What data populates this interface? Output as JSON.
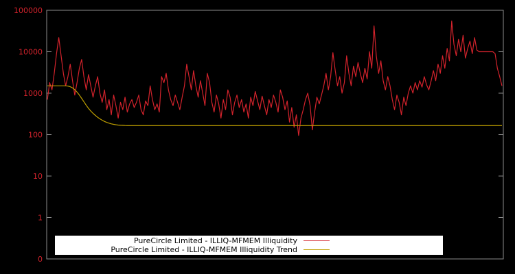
{
  "chart_data": {
    "type": "line",
    "title": "",
    "background_color": "#000000",
    "frame_color": "#8c8c8c",
    "y_axis": {
      "scale": "log",
      "ticks": [
        "100000",
        "10000",
        "1000",
        "100",
        "10",
        "1",
        "0"
      ],
      "label_color": "#d4232c",
      "ylim_log_top": 100000,
      "ylim_log_bottom": 1
    },
    "x_axis": {
      "ticks": []
    },
    "legend": {
      "position": "bottom-center",
      "background": "#ffffff",
      "text_color": "#000000"
    },
    "series": [
      {
        "name": "PureCircle Limited - ILLIQ-MFMEM Illiquidity",
        "color": "#d4232c",
        "values": [
          700,
          1800,
          1200,
          3000,
          9000,
          22000,
          8000,
          3000,
          1500,
          2500,
          5000,
          2000,
          900,
          1800,
          4000,
          6500,
          2500,
          1200,
          2800,
          1500,
          800,
          1500,
          2500,
          1000,
          600,
          1200,
          400,
          700,
          300,
          900,
          500,
          250,
          600,
          400,
          800,
          350,
          550,
          700,
          450,
          600,
          900,
          400,
          300,
          650,
          500,
          1500,
          700,
          400,
          550,
          350,
          2500,
          1800,
          3000,
          1200,
          700,
          500,
          900,
          600,
          400,
          800,
          1500,
          5000,
          2500,
          1200,
          3500,
          1500,
          800,
          2000,
          1000,
          500,
          3000,
          1800,
          600,
          350,
          900,
          550,
          250,
          700,
          400,
          1200,
          800,
          300,
          600,
          900,
          450,
          700,
          350,
          550,
          250,
          800,
          500,
          1100,
          650,
          400,
          850,
          500,
          300,
          700,
          450,
          900,
          600,
          350,
          1200,
          800,
          400,
          650,
          200,
          450,
          150,
          300,
          95,
          250,
          400,
          700,
          1000,
          500,
          130,
          350,
          800,
          550,
          900,
          1500,
          3000,
          1200,
          2500,
          9500,
          3500,
          1500,
          2500,
          1000,
          1800,
          8000,
          3000,
          1500,
          4500,
          2500,
          5500,
          3000,
          1800,
          4000,
          2200,
          10000,
          4000,
          42000,
          8000,
          3000,
          6000,
          2000,
          1200,
          2500,
          1500,
          700,
          400,
          900,
          600,
          300,
          800,
          500,
          1000,
          1500,
          1000,
          1800,
          1200,
          2000,
          1400,
          2500,
          1600,
          1200,
          2000,
          3500,
          2000,
          5000,
          3000,
          8000,
          4000,
          12000,
          6000,
          55000,
          15000,
          8000,
          20000,
          10000,
          25000,
          7000,
          12000,
          18000,
          9000,
          22000,
          11000,
          10000,
          10000,
          10000,
          10000,
          10000,
          10000,
          10000,
          9000,
          4000,
          2500,
          1500
        ]
      },
      {
        "name": "PureCircle Limited - ILLIQ-MFMEM Illiquidity Trend",
        "color": "#c0a000",
        "values": [
          1500,
          1500,
          1500,
          1500,
          1500,
          1500,
          1500,
          1500,
          1500,
          1480,
          1430,
          1340,
          1210,
          1060,
          900,
          750,
          620,
          510,
          430,
          370,
          325,
          290,
          262,
          240,
          222,
          208,
          197,
          189,
          182,
          177,
          173,
          170,
          168,
          167,
          166,
          165,
          165,
          165,
          165,
          165,
          165,
          165,
          165,
          165,
          165,
          165,
          165,
          165,
          165,
          165,
          165,
          165,
          165,
          165,
          165,
          165,
          165,
          165,
          165,
          165,
          165,
          165,
          165,
          165,
          165,
          165,
          165,
          165,
          165,
          165,
          165,
          165,
          165,
          165,
          165,
          165,
          165,
          165,
          165,
          165,
          165,
          165,
          165,
          165,
          165,
          165,
          165,
          165,
          165,
          165,
          165,
          165,
          165,
          165,
          165,
          165,
          165,
          165,
          165,
          165,
          165,
          165,
          165,
          165,
          165,
          165,
          165,
          165,
          165,
          165,
          165,
          165,
          165,
          165,
          165,
          165,
          165,
          165,
          165,
          165,
          165,
          165,
          165,
          165,
          165,
          165,
          165,
          165,
          165,
          165,
          165,
          165,
          165,
          165,
          165,
          165,
          165,
          165,
          165,
          165,
          165,
          165,
          165,
          165,
          165,
          165,
          165,
          165,
          165,
          165,
          165,
          165,
          165,
          165,
          165,
          165,
          165,
          165,
          165,
          165,
          165,
          165,
          165,
          165,
          165,
          165,
          165,
          165,
          165,
          165,
          165,
          165,
          165,
          165,
          165,
          165,
          165,
          165,
          165,
          165,
          165,
          165,
          165,
          165,
          165,
          165,
          165,
          165,
          165,
          165,
          165,
          165,
          165,
          165,
          165,
          165,
          165,
          165,
          165,
          165
        ]
      }
    ]
  }
}
